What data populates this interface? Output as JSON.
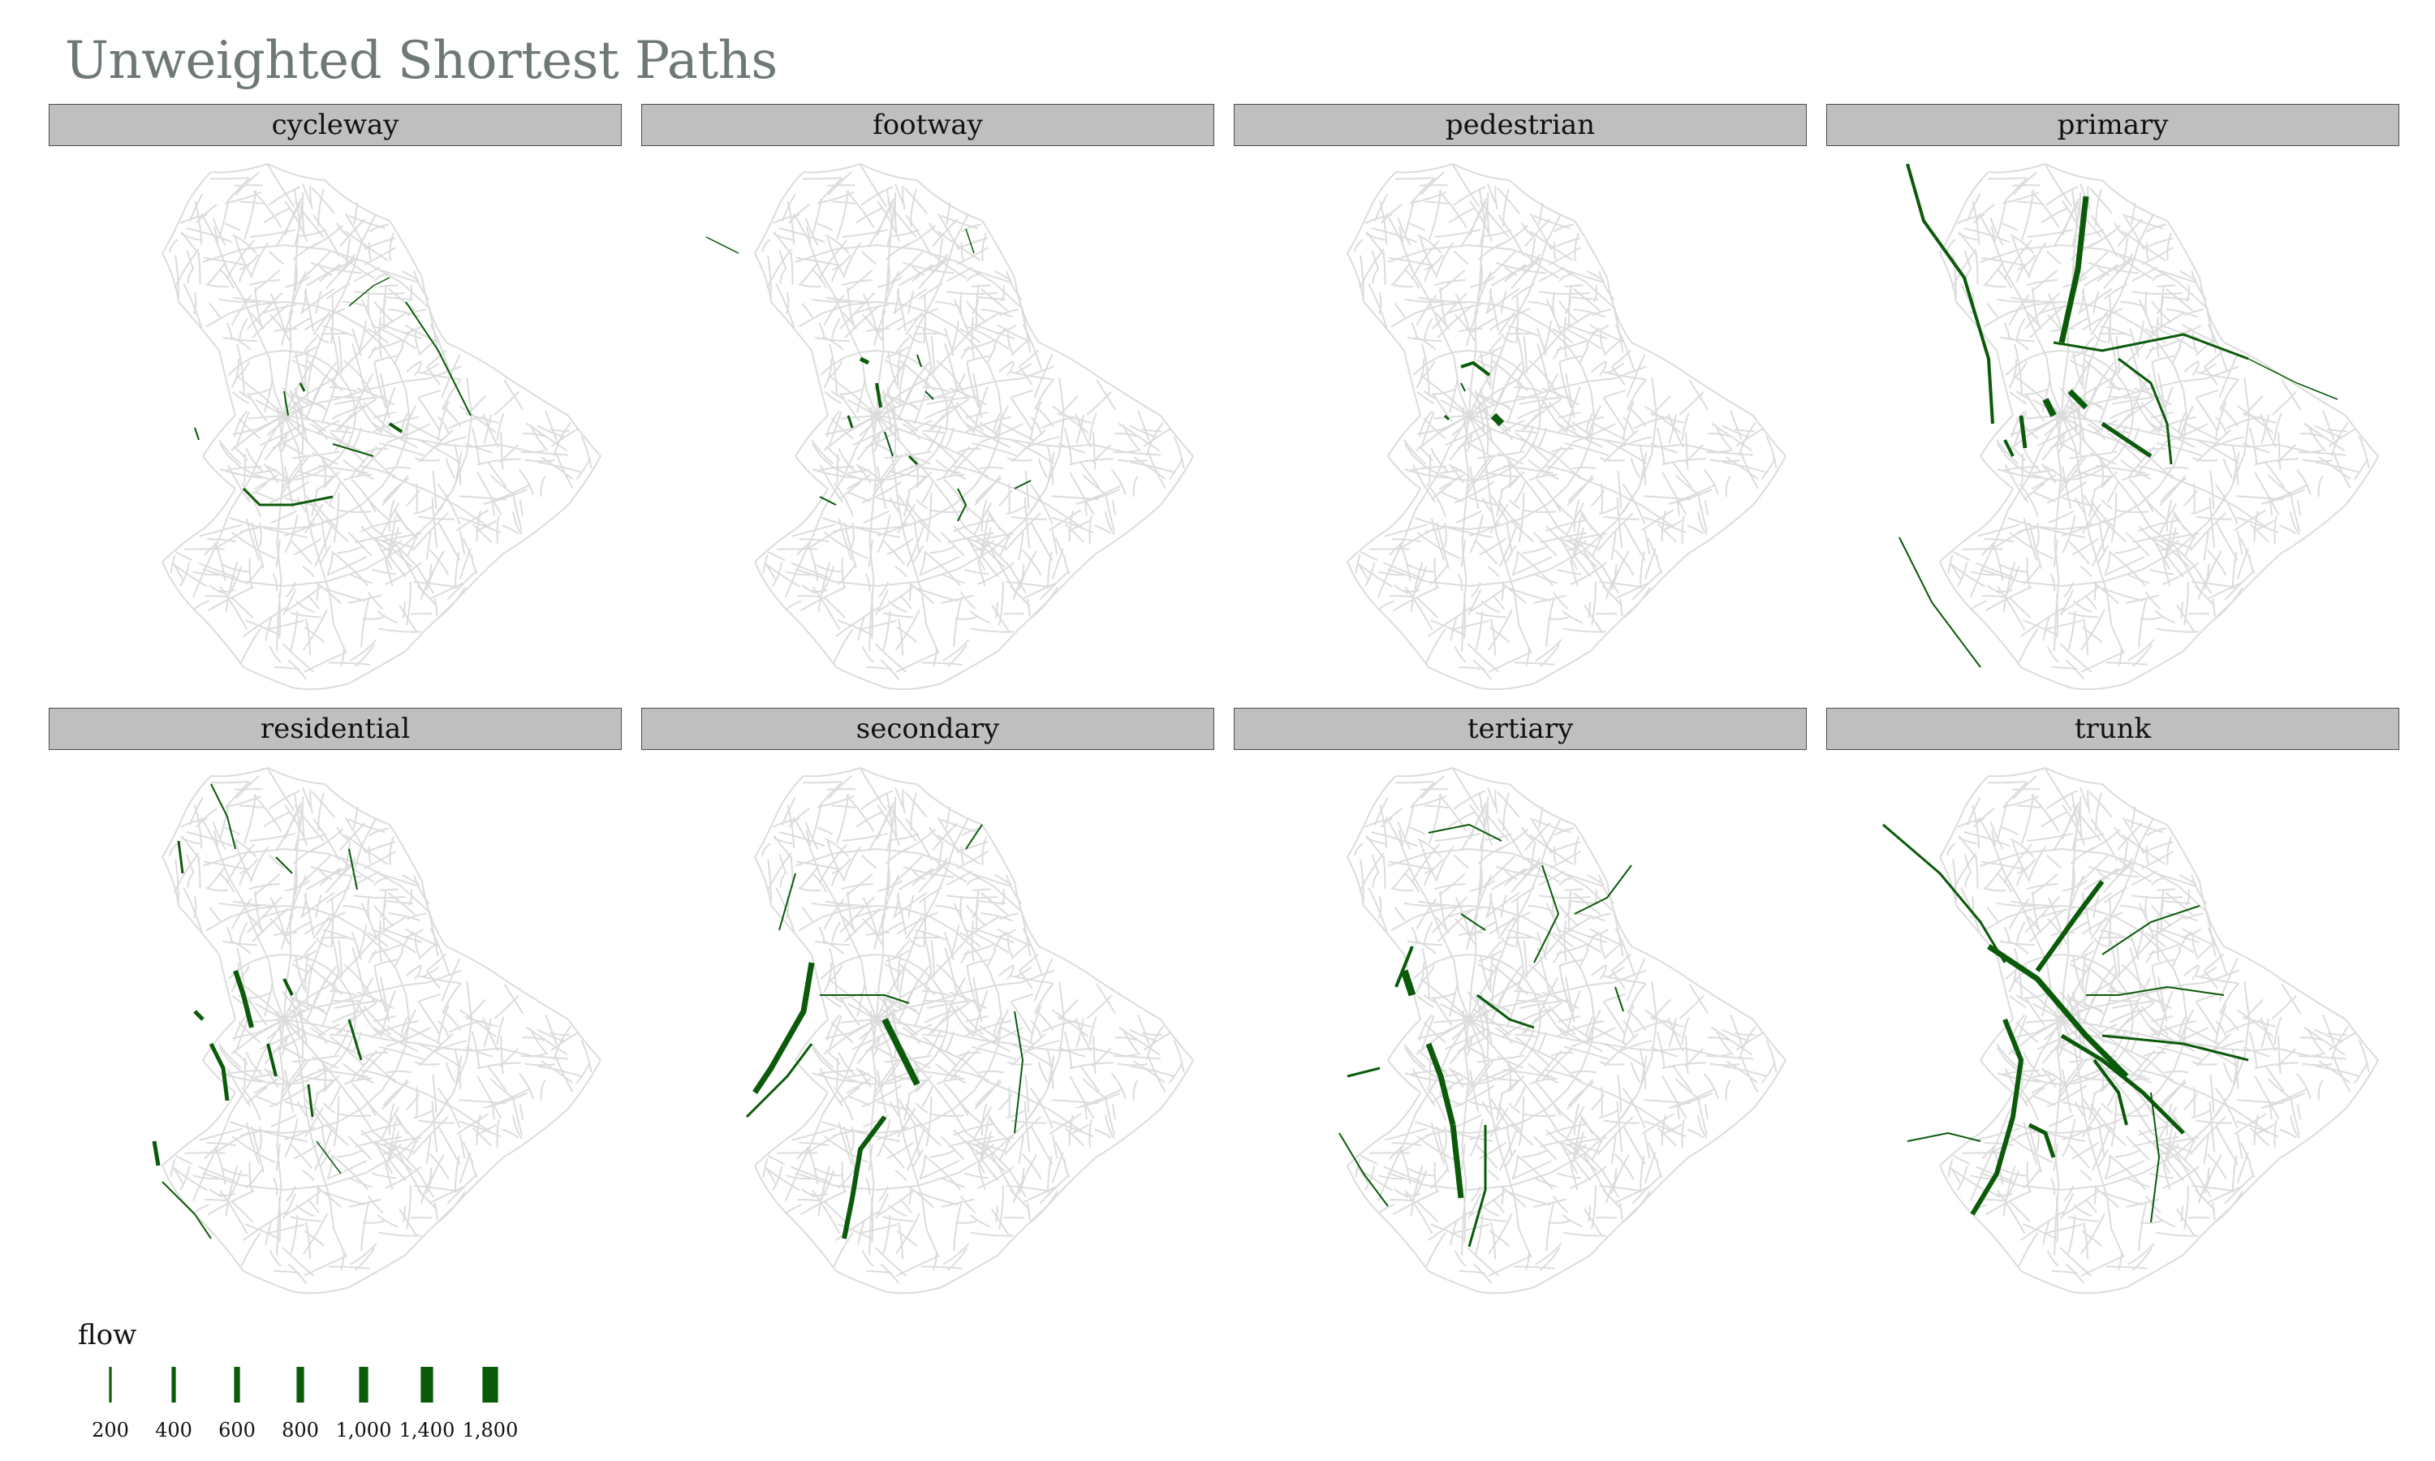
{
  "title": "Unweighted Shortest Paths",
  "colors": {
    "base_roads": "#dcdcdc",
    "flow": "#0a5a0a",
    "strip_bg": "#bfbfbf",
    "title": "#6f7878"
  },
  "chart_data": {
    "type": "map-facets",
    "facet_variable": "highway type",
    "facets": [
      {
        "label": "cycleway"
      },
      {
        "label": "footway"
      },
      {
        "label": "pedestrian"
      },
      {
        "label": "primary"
      },
      {
        "label": "residential"
      },
      {
        "label": "secondary"
      },
      {
        "label": "tertiary"
      },
      {
        "label": "trunk"
      }
    ],
    "legend": {
      "title": "flow",
      "breaks": [
        200,
        400,
        600,
        800,
        1000,
        1400,
        1800
      ],
      "labels": [
        "200",
        "400",
        "600",
        "800",
        "1,000",
        "1,400",
        "1,800"
      ]
    }
  }
}
